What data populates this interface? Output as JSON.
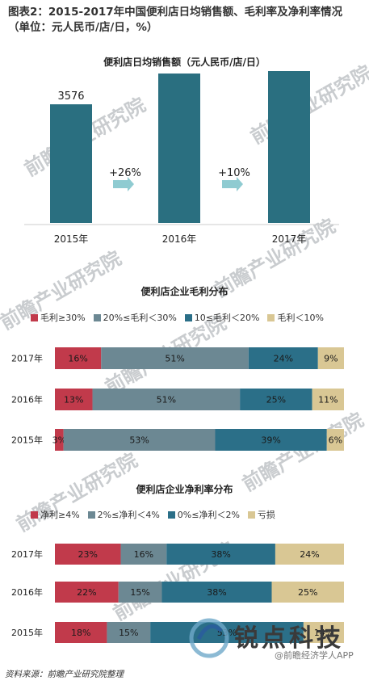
{
  "title": "图表2：2015-2017年中国便利店日均销售额、毛利率及净利率情况（单位：元人民币/店/日，%）",
  "footer": "资料来源：前瞻产业研究院整理",
  "watermark_text": "前瞻产业研究院",
  "logo": {
    "name": "锐点科技",
    "url": "www.ruidiankeji.com",
    "credit": "@前瞻经济学人APP"
  },
  "colors": {
    "teal": "#2a6f80",
    "red": "#c13a4b",
    "gray": "#6c8893",
    "blue": "#2b6f88",
    "sand": "#d9c794",
    "arrow": "#8fcbd1"
  },
  "chart_data": [
    {
      "type": "bar",
      "title": "便利店日均销售额（元人民币/店/日）",
      "categories": [
        "2015年",
        "2016年",
        "2017年"
      ],
      "values": [
        3576,
        4504,
        4936
      ],
      "growth_labels": [
        "+26%",
        "+10%"
      ],
      "ylim": [
        0,
        5600
      ]
    },
    {
      "type": "bar",
      "stacked": "horizontal-100",
      "title": "便利店企业毛利分布",
      "categories": [
        "2017年",
        "2016年",
        "2015年"
      ],
      "series": [
        {
          "name": "毛利≥30%",
          "color": "#c13a4b",
          "values": [
            16,
            13,
            3
          ]
        },
        {
          "name": "20%≤毛利＜30%",
          "color": "#6c8893",
          "values": [
            51,
            51,
            53
          ]
        },
        {
          "name": "10≤毛利＜20%",
          "color": "#2b6f88",
          "values": [
            24,
            25,
            39
          ]
        },
        {
          "name": "毛利＜10%",
          "color": "#d9c794",
          "values": [
            9,
            11,
            6
          ]
        }
      ]
    },
    {
      "type": "bar",
      "stacked": "horizontal-100",
      "title": "便利店企业净利率分布",
      "categories": [
        "2017年",
        "2016年",
        "2015年"
      ],
      "series": [
        {
          "name": "净利≥4%",
          "color": "#c13a4b",
          "values": [
            23,
            22,
            18
          ]
        },
        {
          "name": "2%≤净利＜4%",
          "color": "#6c8893",
          "values": [
            16,
            15,
            15
          ]
        },
        {
          "name": "0%≤净利＜2%",
          "color": "#2b6f88",
          "values": [
            38,
            38,
            53
          ]
        },
        {
          "name": "亏损",
          "color": "#d9c794",
          "values": [
            24,
            25,
            14
          ]
        }
      ]
    }
  ]
}
